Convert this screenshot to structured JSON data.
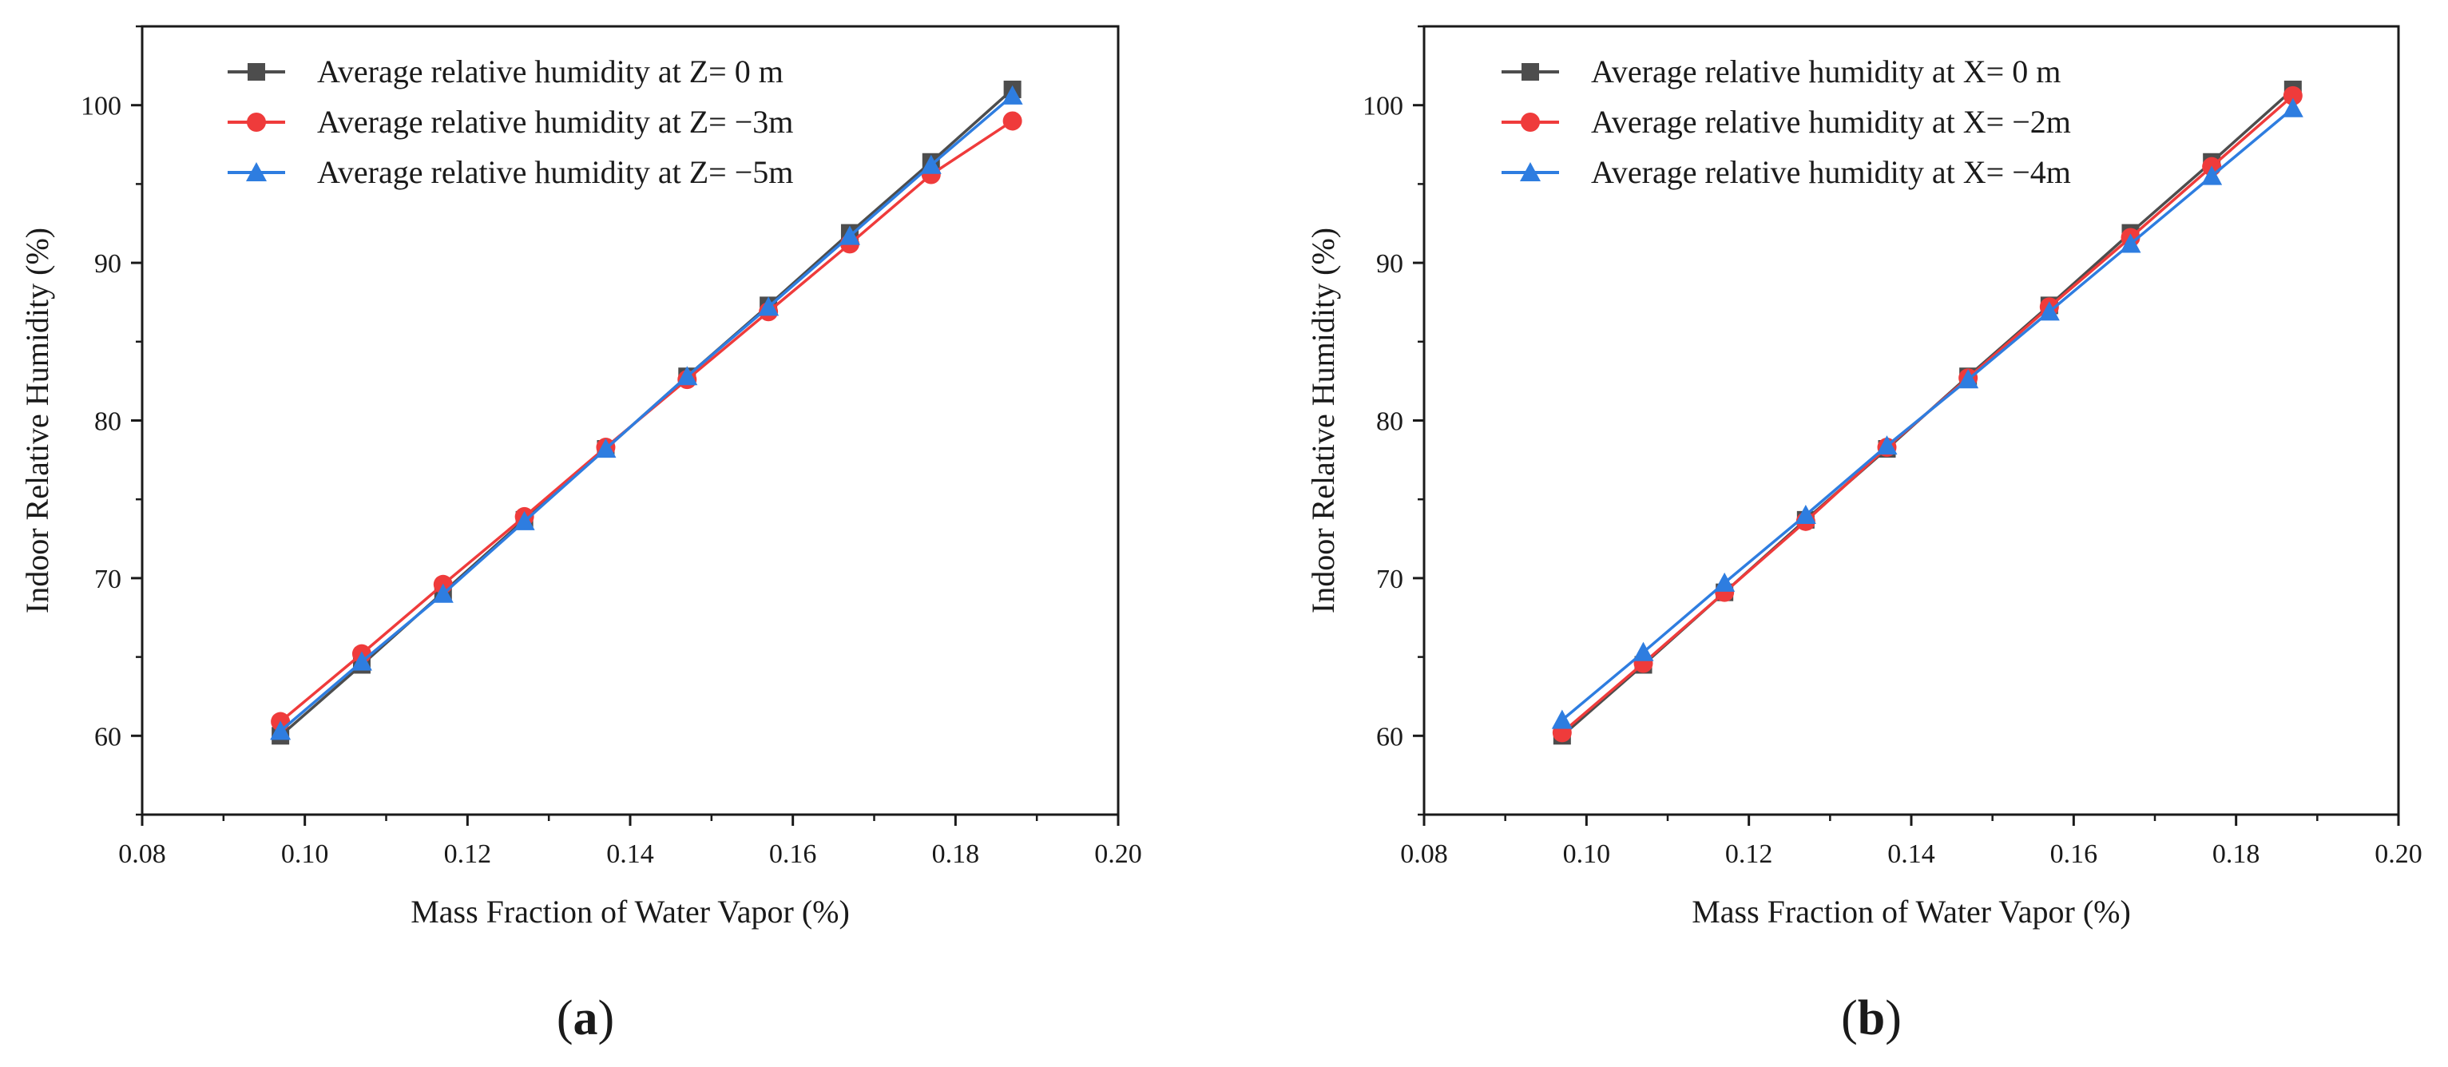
{
  "colors": {
    "series_black": "#4d4d4d",
    "series_red": "#ef3b3b",
    "series_blue": "#2e7de0",
    "axis": "#1a1a1a"
  },
  "chart_data": [
    {
      "type": "line",
      "panel_label": "(a)",
      "panel_letter": "a",
      "title": "",
      "xlabel": "Mass Fraction of Water Vapor (%)",
      "ylabel": "Indoor Relative Humidity (%)",
      "xlim": [
        0.08,
        0.2
      ],
      "ylim": [
        55,
        105
      ],
      "xticks": [
        0.08,
        0.1,
        0.12,
        0.14,
        0.16,
        0.18,
        0.2
      ],
      "xtick_labels": [
        "0.08",
        "0.10",
        "0.12",
        "0.14",
        "0.16",
        "0.18",
        "0.20"
      ],
      "yticks": [
        60,
        70,
        80,
        90,
        100
      ],
      "ytick_labels": [
        "60",
        "70",
        "80",
        "90",
        "100"
      ],
      "legend_position": "top-left",
      "grid": false,
      "x": [
        0.097,
        0.107,
        0.117,
        0.127,
        0.137,
        0.147,
        0.157,
        0.167,
        0.177,
        0.187
      ],
      "series": [
        {
          "name": "Average relative humidity at Z=  0 m",
          "marker": "square",
          "color": "#4d4d4d",
          "values": [
            60.0,
            64.5,
            69.1,
            73.7,
            78.2,
            82.8,
            87.3,
            91.9,
            96.4,
            101.0
          ]
        },
        {
          "name": "Average relative humidity at Z= −3m",
          "marker": "circle",
          "color": "#ef3b3b",
          "values": [
            60.9,
            65.2,
            69.6,
            73.9,
            78.3,
            82.6,
            86.9,
            91.2,
            95.6,
            99.0
          ]
        },
        {
          "name": "Average relative humidity at Z= −5m",
          "marker": "triangle",
          "color": "#2e7de0",
          "values": [
            60.3,
            64.7,
            69.0,
            73.6,
            78.2,
            82.8,
            87.2,
            91.7,
            96.2,
            100.6
          ]
        }
      ]
    },
    {
      "type": "line",
      "panel_label": "(b)",
      "panel_letter": "b",
      "title": "",
      "xlabel": "Mass Fraction of Water Vapor (%)",
      "ylabel": "Indoor Relative Humidity (%)",
      "xlim": [
        0.08,
        0.2
      ],
      "ylim": [
        55,
        105
      ],
      "xticks": [
        0.08,
        0.1,
        0.12,
        0.14,
        0.16,
        0.18,
        0.2
      ],
      "xtick_labels": [
        "0.08",
        "0.10",
        "0.12",
        "0.14",
        "0.16",
        "0.18",
        "0.20"
      ],
      "yticks": [
        60,
        70,
        80,
        90,
        100
      ],
      "ytick_labels": [
        "60",
        "70",
        "80",
        "90",
        "100"
      ],
      "legend_position": "top-left",
      "grid": false,
      "x": [
        0.097,
        0.107,
        0.117,
        0.127,
        0.137,
        0.147,
        0.157,
        0.167,
        0.177,
        0.187
      ],
      "series": [
        {
          "name": "Average relative humidity at X= 0 m",
          "marker": "square",
          "color": "#4d4d4d",
          "values": [
            60.0,
            64.5,
            69.1,
            73.7,
            78.2,
            82.8,
            87.3,
            91.9,
            96.4,
            101.0
          ]
        },
        {
          "name": "Average relative humidity at X= −2m",
          "marker": "circle",
          "color": "#ef3b3b",
          "values": [
            60.2,
            64.6,
            69.1,
            73.6,
            78.3,
            82.7,
            87.2,
            91.6,
            96.1,
            100.6
          ]
        },
        {
          "name": "Average relative humidity at X= −4m",
          "marker": "triangle",
          "color": "#2e7de0",
          "values": [
            61.0,
            65.3,
            69.7,
            74.0,
            78.4,
            82.6,
            86.9,
            91.2,
            95.5,
            99.8
          ]
        }
      ]
    }
  ]
}
